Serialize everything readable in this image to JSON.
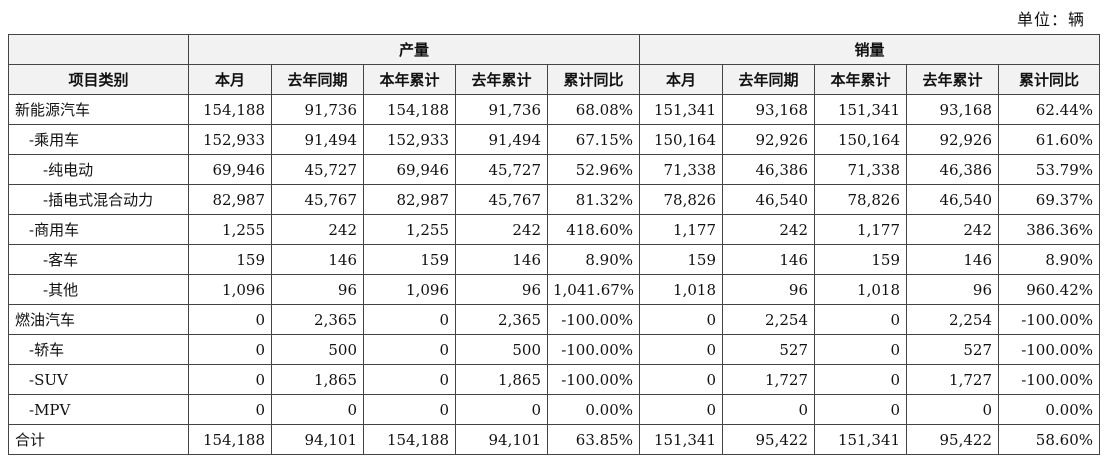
{
  "unit_label": "单位：辆",
  "header": {
    "category": "项目类别",
    "groups": [
      "产量",
      "销量"
    ],
    "columns": [
      "本月",
      "去年同期",
      "本年累计",
      "去年累计",
      "累计同比"
    ]
  },
  "rows": [
    {
      "label": "新能源汽车",
      "indent": 0,
      "production": [
        "154,188",
        "91,736",
        "154,188",
        "91,736",
        "68.08%"
      ],
      "sales": [
        "151,341",
        "93,168",
        "151,341",
        "93,168",
        "62.44%"
      ]
    },
    {
      "label": "-乘用车",
      "indent": 1,
      "production": [
        "152,933",
        "91,494",
        "152,933",
        "91,494",
        "67.15%"
      ],
      "sales": [
        "150,164",
        "92,926",
        "150,164",
        "92,926",
        "61.60%"
      ]
    },
    {
      "label": "-纯电动",
      "indent": 2,
      "production": [
        "69,946",
        "45,727",
        "69,946",
        "45,727",
        "52.96%"
      ],
      "sales": [
        "71,338",
        "46,386",
        "71,338",
        "46,386",
        "53.79%"
      ]
    },
    {
      "label": "-插电式混合动力",
      "indent": 2,
      "production": [
        "82,987",
        "45,767",
        "82,987",
        "45,767",
        "81.32%"
      ],
      "sales": [
        "78,826",
        "46,540",
        "78,826",
        "46,540",
        "69.37%"
      ]
    },
    {
      "label": "-商用车",
      "indent": 1,
      "production": [
        "1,255",
        "242",
        "1,255",
        "242",
        "418.60%"
      ],
      "sales": [
        "1,177",
        "242",
        "1,177",
        "242",
        "386.36%"
      ]
    },
    {
      "label": "-客车",
      "indent": 2,
      "production": [
        "159",
        "146",
        "159",
        "146",
        "8.90%"
      ],
      "sales": [
        "159",
        "146",
        "159",
        "146",
        "8.90%"
      ]
    },
    {
      "label": "-其他",
      "indent": 2,
      "production": [
        "1,096",
        "96",
        "1,096",
        "96",
        "1,041.67%"
      ],
      "sales": [
        "1,018",
        "96",
        "1,018",
        "96",
        "960.42%"
      ]
    },
    {
      "label": "燃油汽车",
      "indent": 0,
      "production": [
        "0",
        "2,365",
        "0",
        "2,365",
        "-100.00%"
      ],
      "sales": [
        "0",
        "2,254",
        "0",
        "2,254",
        "-100.00%"
      ]
    },
    {
      "label": "-轿车",
      "indent": 1,
      "production": [
        "0",
        "500",
        "0",
        "500",
        "-100.00%"
      ],
      "sales": [
        "0",
        "527",
        "0",
        "527",
        "-100.00%"
      ]
    },
    {
      "label": "-SUV",
      "indent": 1,
      "production": [
        "0",
        "1,865",
        "0",
        "1,865",
        "-100.00%"
      ],
      "sales": [
        "0",
        "1,727",
        "0",
        "1,727",
        "-100.00%"
      ]
    },
    {
      "label": "-MPV",
      "indent": 1,
      "production": [
        "0",
        "0",
        "0",
        "0",
        "0.00%"
      ],
      "sales": [
        "0",
        "0",
        "0",
        "0",
        "0.00%"
      ]
    },
    {
      "label": "合计",
      "indent": 0,
      "production": [
        "154,188",
        "94,101",
        "154,188",
        "94,101",
        "63.85%"
      ],
      "sales": [
        "151,341",
        "95,422",
        "151,341",
        "95,422",
        "58.60%"
      ]
    }
  ]
}
